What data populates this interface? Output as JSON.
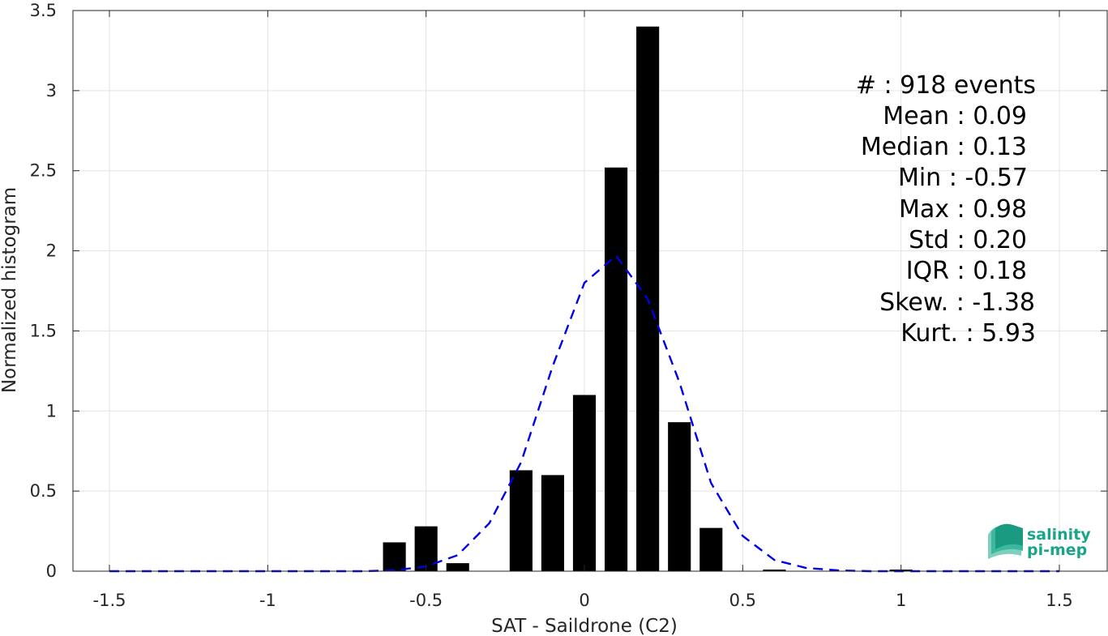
{
  "chart_data": {
    "type": "bar",
    "xlabel": "SAT - Saildrone (C2)",
    "ylabel": "Normalized histogram",
    "xlim": [
      -1.5,
      1.5
    ],
    "ylim": [
      0,
      3.5
    ],
    "xticks": [
      "-1.5",
      "-1",
      "-0.5",
      "0",
      "0.5",
      "1",
      "1.5"
    ],
    "yticks": [
      "0",
      "0.5",
      "1",
      "1.5",
      "2",
      "2.5",
      "3",
      "3.5"
    ],
    "grid": true,
    "bar_color": "#000000",
    "bin_width": 0.1,
    "bins": [
      {
        "x": -0.6,
        "y": 0.18
      },
      {
        "x": -0.5,
        "y": 0.28
      },
      {
        "x": -0.4,
        "y": 0.05
      },
      {
        "x": -0.2,
        "y": 0.63
      },
      {
        "x": -0.1,
        "y": 0.6
      },
      {
        "x": 0.0,
        "y": 1.1
      },
      {
        "x": 0.1,
        "y": 2.52
      },
      {
        "x": 0.2,
        "y": 3.4
      },
      {
        "x": 0.3,
        "y": 0.93
      },
      {
        "x": 0.4,
        "y": 0.27
      },
      {
        "x": 0.6,
        "y": 0.01
      },
      {
        "x": 1.0,
        "y": 0.01
      }
    ],
    "fit_curve": {
      "color": "#0000e6",
      "style": "dashed",
      "x": [
        -1.5,
        -1.4,
        -1.3,
        -1.2,
        -1.1,
        -1.0,
        -0.9,
        -0.8,
        -0.7,
        -0.6,
        -0.5,
        -0.4,
        -0.3,
        -0.2,
        -0.1,
        0.0,
        0.1,
        0.2,
        0.3,
        0.4,
        0.5,
        0.6,
        0.7,
        0.8,
        0.9,
        1.0,
        1.1,
        1.2,
        1.3,
        1.4,
        1.5
      ],
      "y": [
        0,
        0,
        0,
        0,
        0,
        0,
        0,
        0,
        0,
        0.005,
        0.03,
        0.1,
        0.3,
        0.68,
        1.28,
        1.8,
        1.97,
        1.7,
        1.18,
        0.55,
        0.22,
        0.07,
        0.02,
        0.005,
        0,
        0,
        0,
        0,
        0,
        0,
        0
      ]
    },
    "stats": [
      {
        "label": "#  : 918 events"
      },
      {
        "label": "Mean : 0.09"
      },
      {
        "label": "Median : 0.13"
      },
      {
        "label": "Min : -0.57"
      },
      {
        "label": "Max : 0.98"
      },
      {
        "label": "Std : 0.20"
      },
      {
        "label": "IQR : 0.18"
      },
      {
        "label": "Skew. : -1.38"
      },
      {
        "label": "Kurt. : 5.93"
      }
    ]
  },
  "logo": {
    "line1": "salinity",
    "line2": "pi-mep",
    "color": "#1aa58a"
  }
}
